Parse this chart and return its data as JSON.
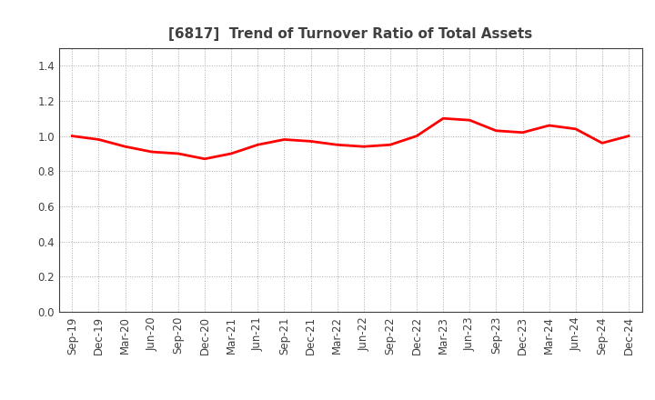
{
  "title": "[6817]  Trend of Turnover Ratio of Total Assets",
  "labels": [
    "Sep-19",
    "Dec-19",
    "Mar-20",
    "Jun-20",
    "Sep-20",
    "Dec-20",
    "Mar-21",
    "Jun-21",
    "Sep-21",
    "Dec-21",
    "Mar-22",
    "Jun-22",
    "Sep-22",
    "Dec-22",
    "Mar-23",
    "Jun-23",
    "Sep-23",
    "Dec-23",
    "Mar-24",
    "Jun-24",
    "Sep-24",
    "Dec-24"
  ],
  "values": [
    1.0,
    0.98,
    0.94,
    0.91,
    0.9,
    0.87,
    0.9,
    0.95,
    0.98,
    0.97,
    0.95,
    0.94,
    0.95,
    1.0,
    1.1,
    1.09,
    1.03,
    1.02,
    1.06,
    1.04,
    0.96,
    1.0
  ],
  "line_color": "#FF0000",
  "line_width": 2.0,
  "ylim": [
    0.0,
    1.5
  ],
  "yticks": [
    0.0,
    0.2,
    0.4,
    0.6,
    0.8,
    1.0,
    1.2,
    1.4
  ],
  "grid_color": "#aaaaaa",
  "background_color": "#ffffff",
  "title_fontsize": 11,
  "title_color": "#404040",
  "tick_fontsize": 8.5,
  "tick_color": "#404040",
  "spine_color": "#404040"
}
